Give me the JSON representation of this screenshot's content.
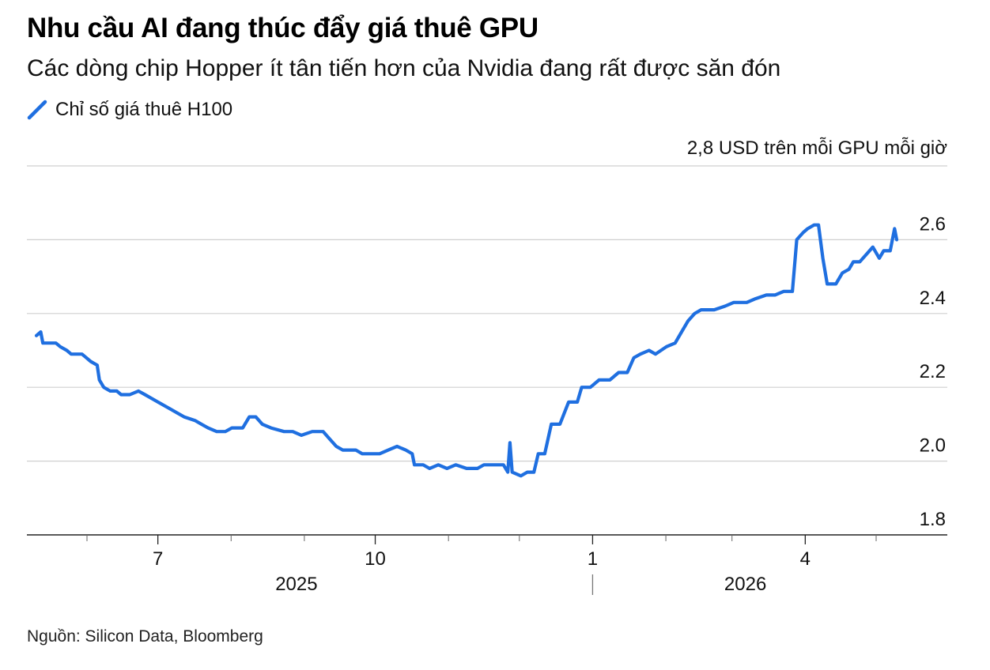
{
  "title": "Nhu cầu AI đang thúc đẩy giá thuê GPU",
  "subtitle": "Các dòng chip Hopper ít tân tiến hơn của Nvidia đang rất được săn đón",
  "legend": {
    "label": "Chỉ số giá thuê H100",
    "color": "#1f6fe0"
  },
  "unit_label": "2,8 USD trên mỗi GPU mỗi giờ",
  "source": "Nguồn: Silicon Data, Bloomberg",
  "chart_data": {
    "type": "line",
    "ylim": [
      1.8,
      2.8
    ],
    "yticks": [
      {
        "value": 2.6,
        "label": "2.6"
      },
      {
        "value": 2.4,
        "label": "2.4"
      },
      {
        "value": 2.2,
        "label": "2.2"
      },
      {
        "value": 2.0,
        "label": "2.0"
      },
      {
        "value": 1.8,
        "label": "1.8"
      }
    ],
    "xlim": [
      "2025-05-06",
      "2026-05-23"
    ],
    "minor_ticks": [
      "2025-06-01",
      "2025-08-01",
      "2025-09-01",
      "2025-11-01",
      "2025-12-01",
      "2026-02-01",
      "2026-03-01",
      "2026-05-01"
    ],
    "month_ticks": [
      {
        "date": "2025-07-01",
        "label": "7"
      },
      {
        "date": "2025-10-01",
        "label": "10"
      },
      {
        "date": "2026-01-01",
        "label": "1"
      },
      {
        "date": "2026-04-01",
        "label": "4"
      }
    ],
    "year_labels": [
      {
        "label": "2025",
        "date": "2025-09-01"
      },
      {
        "label": "2026",
        "date": "2026-03-10"
      }
    ],
    "year_divider": "2026-01-01",
    "series": [
      {
        "name": "Chỉ số giá thuê H100",
        "color": "#1f6fe0",
        "points": [
          [
            "2025-05-11",
            2.34
          ],
          [
            "2025-05-13",
            2.35
          ],
          [
            "2025-05-14",
            2.32
          ],
          [
            "2025-05-20",
            2.32
          ],
          [
            "2025-05-22",
            2.31
          ],
          [
            "2025-05-25",
            2.3
          ],
          [
            "2025-05-27",
            2.29
          ],
          [
            "2025-06-01",
            2.29
          ],
          [
            "2025-06-03",
            2.28
          ],
          [
            "2025-06-05",
            2.27
          ],
          [
            "2025-06-08",
            2.26
          ],
          [
            "2025-06-09",
            2.22
          ],
          [
            "2025-06-11",
            2.2
          ],
          [
            "2025-06-14",
            2.19
          ],
          [
            "2025-06-17",
            2.19
          ],
          [
            "2025-06-19",
            2.18
          ],
          [
            "2025-06-23",
            2.18
          ],
          [
            "2025-06-27",
            2.19
          ],
          [
            "2025-06-30",
            2.18
          ],
          [
            "2025-07-03",
            2.17
          ],
          [
            "2025-07-06",
            2.16
          ],
          [
            "2025-07-09",
            2.15
          ],
          [
            "2025-07-12",
            2.14
          ],
          [
            "2025-07-15",
            2.13
          ],
          [
            "2025-07-18",
            2.12
          ],
          [
            "2025-07-23",
            2.11
          ],
          [
            "2025-07-26",
            2.1
          ],
          [
            "2025-07-29",
            2.09
          ],
          [
            "2025-08-02",
            2.08
          ],
          [
            "2025-08-06",
            2.08
          ],
          [
            "2025-08-09",
            2.09
          ],
          [
            "2025-08-14",
            2.09
          ],
          [
            "2025-08-17",
            2.12
          ],
          [
            "2025-08-20",
            2.12
          ],
          [
            "2025-08-23",
            2.1
          ],
          [
            "2025-08-27",
            2.09
          ],
          [
            "2025-09-02",
            2.08
          ],
          [
            "2025-09-06",
            2.08
          ],
          [
            "2025-09-10",
            2.07
          ],
          [
            "2025-09-15",
            2.08
          ],
          [
            "2025-09-20",
            2.08
          ],
          [
            "2025-09-23",
            2.06
          ],
          [
            "2025-09-26",
            2.04
          ],
          [
            "2025-09-29",
            2.03
          ],
          [
            "2025-10-05",
            2.03
          ],
          [
            "2025-10-08",
            2.02
          ],
          [
            "2025-10-12",
            2.02
          ],
          [
            "2025-10-16",
            2.02
          ],
          [
            "2025-10-20",
            2.03
          ],
          [
            "2025-10-24",
            2.04
          ],
          [
            "2025-10-28",
            2.03
          ],
          [
            "2025-10-31",
            2.02
          ],
          [
            "2025-11-01",
            1.99
          ],
          [
            "2025-11-05",
            1.99
          ],
          [
            "2025-11-08",
            1.98
          ],
          [
            "2025-11-12",
            1.99
          ],
          [
            "2025-11-16",
            1.98
          ],
          [
            "2025-11-20",
            1.99
          ],
          [
            "2025-11-25",
            1.98
          ],
          [
            "2025-11-30",
            1.98
          ],
          [
            "2025-12-03",
            1.99
          ],
          [
            "2025-12-08",
            1.99
          ],
          [
            "2025-12-12",
            1.99
          ],
          [
            "2025-12-14",
            1.97
          ],
          [
            "2025-12-15",
            2.05
          ],
          [
            "2025-12-16",
            1.97
          ],
          [
            "2025-12-20",
            1.96
          ],
          [
            "2025-12-23",
            1.97
          ],
          [
            "2025-12-26",
            1.97
          ],
          [
            "2025-12-28",
            2.02
          ],
          [
            "2025-12-31",
            2.02
          ],
          [
            "2026-01-03",
            2.1
          ],
          [
            "2026-01-07",
            2.1
          ],
          [
            "2026-01-11",
            2.16
          ],
          [
            "2026-01-15",
            2.16
          ],
          [
            "2026-01-17",
            2.2
          ],
          [
            "2026-01-21",
            2.2
          ],
          [
            "2026-01-25",
            2.22
          ],
          [
            "2026-01-30",
            2.22
          ],
          [
            "2026-02-03",
            2.24
          ],
          [
            "2026-02-07",
            2.24
          ],
          [
            "2026-02-10",
            2.28
          ],
          [
            "2026-02-13",
            2.29
          ],
          [
            "2026-02-17",
            2.3
          ],
          [
            "2026-02-20",
            2.29
          ],
          [
            "2026-02-25",
            2.31
          ],
          [
            "2026-03-01",
            2.32
          ],
          [
            "2026-03-04",
            2.35
          ],
          [
            "2026-03-07",
            2.38
          ],
          [
            "2026-03-10",
            2.4
          ],
          [
            "2026-03-13",
            2.41
          ],
          [
            "2026-03-19",
            2.41
          ],
          [
            "2026-03-24",
            2.42
          ],
          [
            "2026-03-28",
            2.43
          ],
          [
            "2026-04-03",
            2.43
          ],
          [
            "2026-04-07",
            2.44
          ],
          [
            "2026-04-12",
            2.45
          ],
          [
            "2026-04-16",
            2.45
          ],
          [
            "2026-04-20",
            2.46
          ],
          [
            "2026-04-24",
            2.46
          ],
          [
            "2026-04-26",
            2.6
          ],
          [
            "2026-04-29",
            2.62
          ],
          [
            "2026-05-01",
            2.63
          ],
          [
            "2026-05-04",
            2.64
          ],
          [
            "2026-05-06",
            2.64
          ],
          [
            "2026-05-08",
            2.55
          ],
          [
            "2026-05-10",
            2.48
          ],
          [
            "2026-05-14",
            2.48
          ],
          [
            "2026-05-17",
            2.51
          ],
          [
            "2026-05-20",
            2.52
          ],
          [
            "2026-05-22",
            2.54
          ],
          [
            "2026-05-25",
            2.54
          ],
          [
            "2026-05-28",
            2.56
          ],
          [
            "2026-05-31",
            2.58
          ],
          [
            "2026-06-03",
            2.55
          ],
          [
            "2026-06-05",
            2.57
          ],
          [
            "2026-06-08",
            2.57
          ],
          [
            "2026-06-10",
            2.63
          ],
          [
            "2026-06-11",
            2.6
          ]
        ]
      }
    ]
  }
}
